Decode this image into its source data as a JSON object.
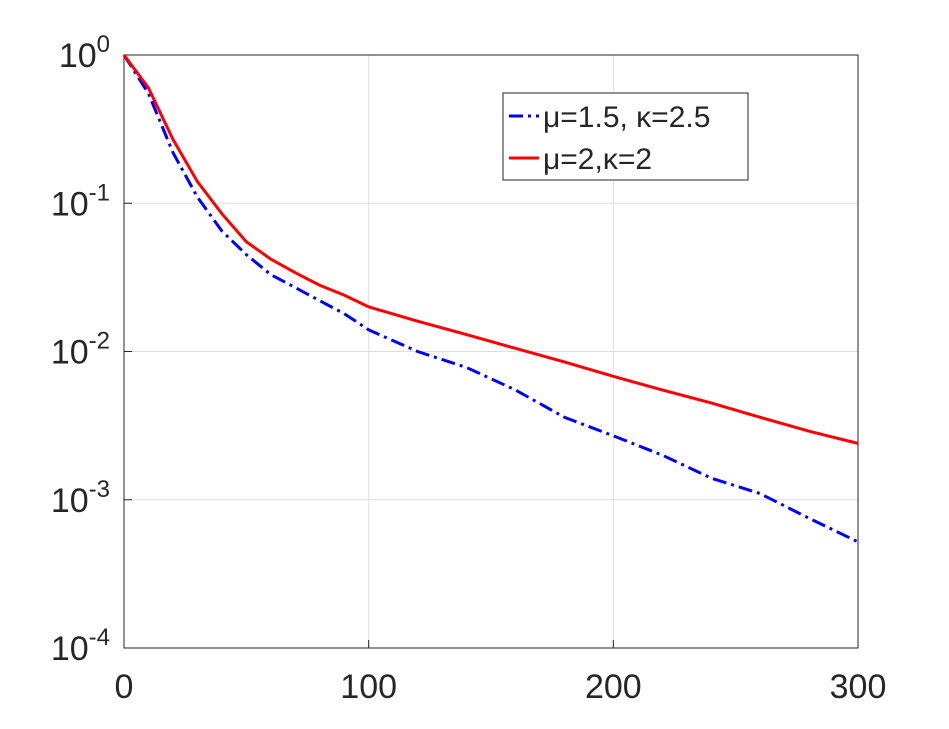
{
  "chart_data": {
    "type": "line",
    "log_y": true,
    "grid": true,
    "legend": "upper right",
    "xlim": [
      0,
      300
    ],
    "xticks": [
      0,
      100,
      200,
      300
    ],
    "ylim": [
      0.0001,
      1
    ],
    "yticks": [
      {
        "value": 0.0001,
        "label": "10",
        "sup": "-4"
      },
      {
        "value": 0.001,
        "label": "10",
        "sup": "-3"
      },
      {
        "value": 0.01,
        "label": "10",
        "sup": "-2"
      },
      {
        "value": 0.1,
        "label": "10",
        "sup": "-1"
      },
      {
        "value": 1,
        "label": "10",
        "sup": "0"
      }
    ],
    "x": [
      0,
      10,
      20,
      30,
      40,
      50,
      60,
      70,
      80,
      90,
      100,
      120,
      140,
      160,
      180,
      200,
      220,
      240,
      260,
      280,
      300
    ],
    "series": [
      {
        "name": "μ=1.5, κ=2.5",
        "color": "#0000ff",
        "dash": "dashdot",
        "values": [
          1,
          0.55,
          0.22,
          0.11,
          0.065,
          0.045,
          0.033,
          0.027,
          0.022,
          0.018,
          0.014,
          0.01,
          0.0078,
          0.0055,
          0.0036,
          0.0027,
          0.002,
          0.0014,
          0.0011,
          0.00075,
          0.00052
        ]
      },
      {
        "name": "μ=2,κ=2",
        "color": "#ff0000",
        "dash": "solid",
        "values": [
          1,
          0.6,
          0.27,
          0.14,
          0.085,
          0.055,
          0.042,
          0.034,
          0.028,
          0.024,
          0.02,
          0.016,
          0.013,
          0.0105,
          0.0085,
          0.0068,
          0.0055,
          0.0045,
          0.0036,
          0.0029,
          0.0024
        ]
      }
    ]
  }
}
